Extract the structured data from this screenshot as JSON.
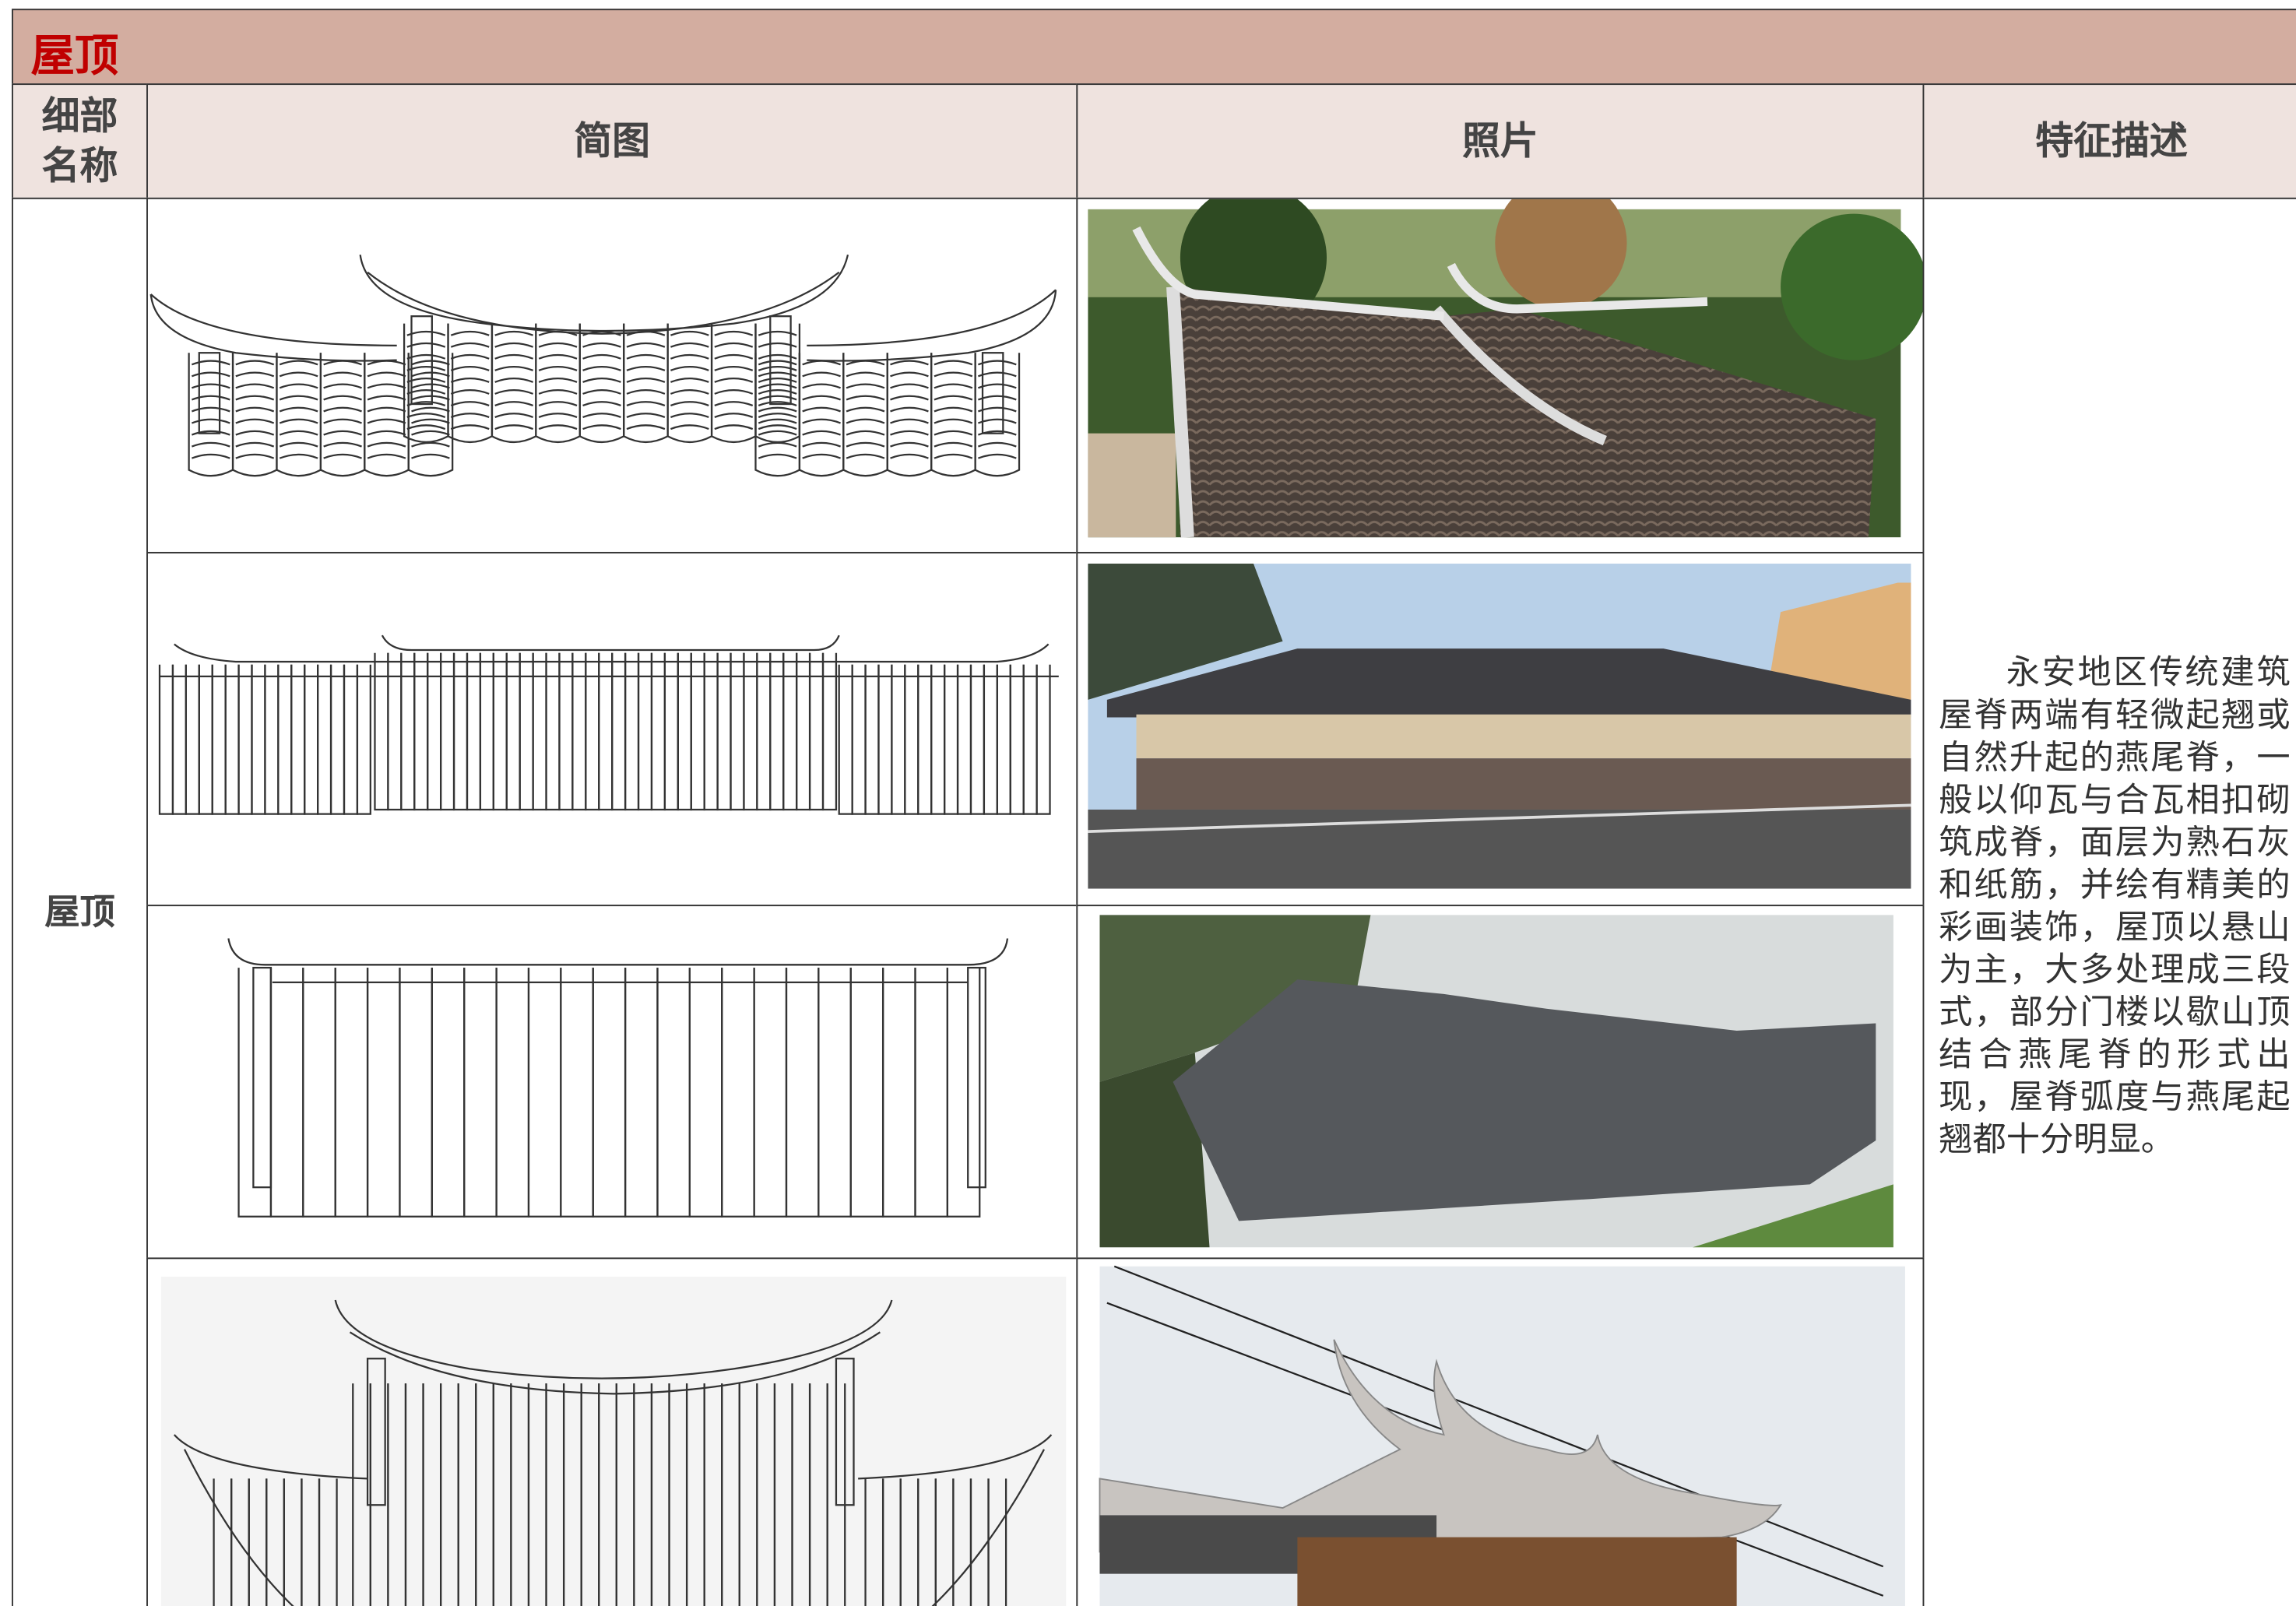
{
  "header": {
    "title": "屋顶"
  },
  "table": {
    "headers": [
      "细部名称",
      "简图",
      "照片",
      "特征描述"
    ],
    "rows": [
      {
        "name": "屋顶",
        "description": "永安地区传统建筑屋脊两端有轻微起翘或自然升起的燕尾脊，一般以仰瓦与合瓦相扣砌筑成脊，面层为熟石灰和纸筋，并绘有精美的彩画装饰，屋顶以悬山为主，大多处理成三段式，部分门楼以歇山顶结合燕尾脊的形式出现，屋脊弧度与燕尾起翘都十分明显。"
      }
    ]
  }
}
